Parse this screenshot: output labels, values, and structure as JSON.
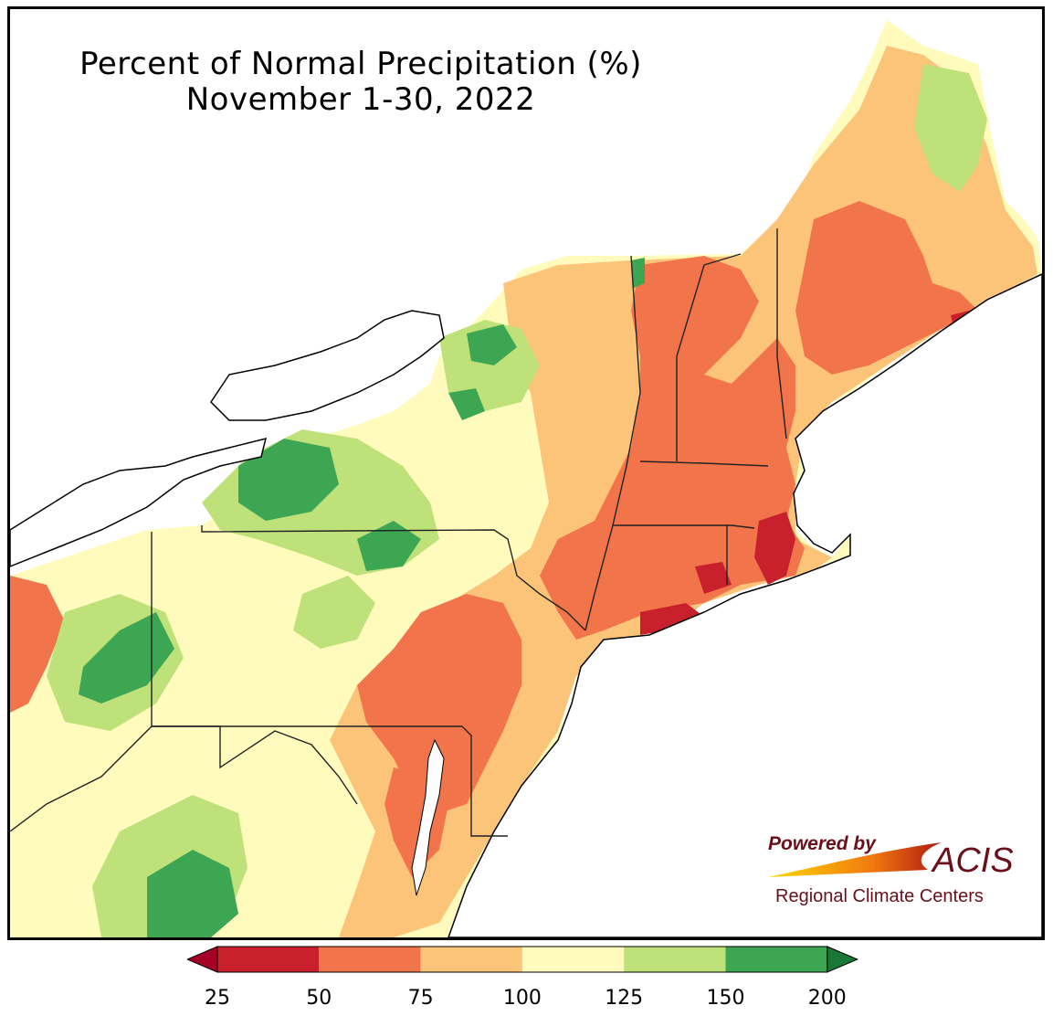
{
  "title": {
    "line1": "Percent of Normal Precipitation (%)",
    "line2": "November 1-30, 2022"
  },
  "map": {
    "region": "Northeast United States",
    "variable": "percent of normal precipitation",
    "legend": {
      "bins": [
        {
          "from": 25,
          "to": 50,
          "color": "#c8202c"
        },
        {
          "from": 50,
          "to": 75,
          "color": "#f1744a"
        },
        {
          "from": 75,
          "to": 100,
          "color": "#fbc478"
        },
        {
          "from": 100,
          "to": 125,
          "color": "#fffbbd"
        },
        {
          "from": 125,
          "to": 150,
          "color": "#bfe17a"
        },
        {
          "from": 150,
          "to": 200,
          "color": "#3ca653"
        }
      ],
      "under_color": "#a50026",
      "over_color": "#1a7837",
      "tick_labels": [
        "25",
        "50",
        "75",
        "100",
        "125",
        "150",
        "200"
      ]
    }
  },
  "logo": {
    "powered_by": "Powered by",
    "acis": "ACIS",
    "rcc": "Regional Climate Centers",
    "color": "#6b0f1a"
  }
}
